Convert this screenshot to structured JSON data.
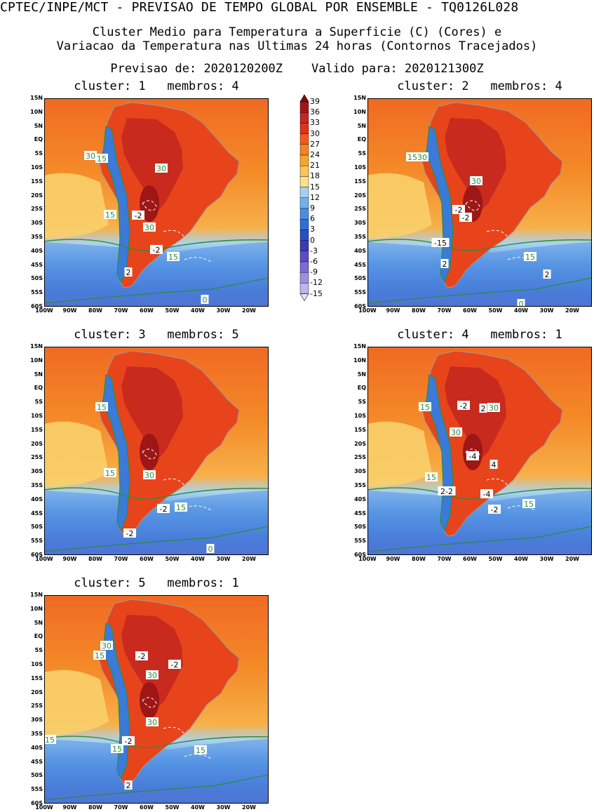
{
  "header": {
    "line1": "CPTEC/INPE/MCT - PREVISAO DE TEMPO GLOBAL POR ENSEMBLE - TQ0126L028",
    "line2": "Cluster Medio para Temperatura a Superficie (C) (Cores) e",
    "line3": "Variacao da Temperatura nas Ultimas 24 horas (Contornos Tracejados)",
    "line4": "Previsao de: 2020120200Z    Valido para: 2020121300Z"
  },
  "axes": {
    "lat_labels": [
      "15N",
      "10N",
      "5N",
      "EQ",
      "5S",
      "10S",
      "15S",
      "20S",
      "25S",
      "30S",
      "35S",
      "40S",
      "45S",
      "50S",
      "55S",
      "60S"
    ],
    "lon_labels": [
      "100W",
      "90W",
      "80W",
      "70W",
      "60W",
      "50W",
      "40W",
      "30W",
      "20W"
    ]
  },
  "colorbar": {
    "labels": [
      "39",
      "36",
      "33",
      "30",
      "27",
      "24",
      "21",
      "18",
      "15",
      "12",
      "9",
      "6",
      "3",
      "0",
      "-3",
      "-6",
      "-9",
      "-12",
      "-15"
    ],
    "colors": [
      "#7f0d0d",
      "#a11717",
      "#c42525",
      "#e0321c",
      "#f25a1c",
      "#f5821e",
      "#f7a428",
      "#f9c556",
      "#fbe18c",
      "#a7d0f0",
      "#72b1ea",
      "#4a8ee0",
      "#2f6fd4",
      "#2a4fc4",
      "#3a3ab8",
      "#5a4ec6",
      "#7b6cd3",
      "#9c8fdf",
      "#beb5ea",
      "#e3defa"
    ]
  },
  "panels": [
    {
      "title": "cluster: 1   membros: 4",
      "labels": [
        {
          "t": "30",
          "x": -1,
          "y": 0
        },
        {
          "t": "15",
          "x": -1,
          "y": 0
        },
        {
          "t": "30",
          "x": 0,
          "y": 0
        },
        {
          "t": "-2",
          "x": 0,
          "y": 0
        },
        {
          "t": "30",
          "x": 0,
          "y": 0
        },
        {
          "t": "15",
          "x": 0,
          "y": 0
        },
        {
          "t": "-2",
          "x": 0,
          "y": 0
        },
        {
          "t": "15",
          "x": 0,
          "y": 0
        },
        {
          "t": "2",
          "x": 0,
          "y": 0
        },
        {
          "t": "0",
          "x": 0,
          "y": 0
        }
      ]
    },
    {
      "title": "cluster: 2   membros: 4",
      "labels": [
        {
          "t": "1530",
          "x": 0,
          "y": 0
        },
        {
          "t": "30",
          "x": 0,
          "y": 0
        },
        {
          "t": "-2",
          "x": 0,
          "y": 0
        },
        {
          "t": "-2",
          "x": 0,
          "y": 0
        },
        {
          "t": "-15",
          "x": 0,
          "y": 0
        },
        {
          "t": "2",
          "x": 0,
          "y": 0
        },
        {
          "t": "15",
          "x": 0,
          "y": 0
        },
        {
          "t": "2",
          "x": 0,
          "y": 0
        },
        {
          "t": "0",
          "x": 0,
          "y": 0
        }
      ]
    },
    {
      "title": "cluster: 3   membros: 5",
      "labels": [
        {
          "t": "15",
          "x": 0,
          "y": 0
        },
        {
          "t": "30",
          "x": 0,
          "y": 0
        },
        {
          "t": "15",
          "x": 0,
          "y": 0
        },
        {
          "t": "-2",
          "x": 0,
          "y": 0
        },
        {
          "t": "15",
          "x": 0,
          "y": 0
        },
        {
          "t": "-2",
          "x": 0,
          "y": 0
        },
        {
          "t": "0",
          "x": 0,
          "y": 0
        }
      ]
    },
    {
      "title": "cluster: 4   membros: 1",
      "labels": [
        {
          "t": "15",
          "x": 0,
          "y": 0
        },
        {
          "t": "-2",
          "x": 0,
          "y": 0
        },
        {
          "t": "2",
          "x": 0,
          "y": 0
        },
        {
          "t": "30",
          "x": 0,
          "y": 0
        },
        {
          "t": "30",
          "x": 0,
          "y": 0
        },
        {
          "t": "-4",
          "x": 0,
          "y": 0
        },
        {
          "t": "4",
          "x": 0,
          "y": 0
        },
        {
          "t": "15",
          "x": 0,
          "y": 0
        },
        {
          "t": "2-2",
          "x": 0,
          "y": 0
        },
        {
          "t": "-4",
          "x": 0,
          "y": 0
        },
        {
          "t": "15",
          "x": 0,
          "y": 0
        },
        {
          "t": "-2",
          "x": 0,
          "y": 0
        }
      ]
    },
    {
      "title": "cluster: 5   membros: 1",
      "labels": [
        {
          "t": "30",
          "x": 0,
          "y": 0
        },
        {
          "t": "15",
          "x": 0,
          "y": 0
        },
        {
          "t": "-2",
          "x": 0,
          "y": 0
        },
        {
          "t": "-2",
          "x": 0,
          "y": 0
        },
        {
          "t": "30",
          "x": 0,
          "y": 0
        },
        {
          "t": "30",
          "x": 0,
          "y": 0
        },
        {
          "t": "-2",
          "x": 0,
          "y": 0
        },
        {
          "t": "15",
          "x": 0,
          "y": 0
        },
        {
          "t": "15",
          "x": 0,
          "y": 0
        },
        {
          "t": "15",
          "x": 0,
          "y": 0
        },
        {
          "t": "2",
          "x": 0,
          "y": 0
        }
      ]
    }
  ]
}
